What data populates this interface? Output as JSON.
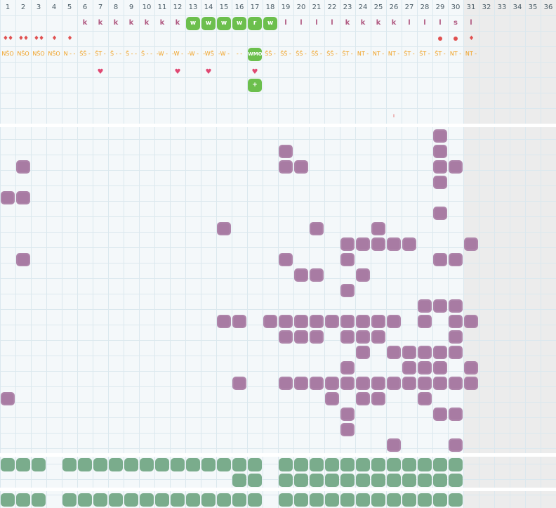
{
  "day_numbers": [
    "1",
    "2",
    "3",
    "4",
    "5",
    "6",
    "7",
    "8",
    "9",
    "10",
    "11",
    "12",
    "13",
    "14",
    "15",
    "16",
    "17",
    "18",
    "19",
    "20",
    "21",
    "22",
    "23",
    "24",
    "25",
    "26",
    "27",
    "28",
    "29",
    "30",
    "31",
    "32",
    "33",
    "34",
    "35",
    "36"
  ],
  "last_active_day": 30,
  "letter_row": [
    {
      "day": 6,
      "text": "k"
    },
    {
      "day": 7,
      "text": "k"
    },
    {
      "day": 8,
      "text": "k"
    },
    {
      "day": 9,
      "text": "k"
    },
    {
      "day": 10,
      "text": "k"
    },
    {
      "day": 11,
      "text": "k"
    },
    {
      "day": 12,
      "text": "k"
    },
    {
      "day": 13,
      "text": "w",
      "badge": true
    },
    {
      "day": 14,
      "text": "w",
      "badge": true
    },
    {
      "day": 15,
      "text": "w",
      "badge": true
    },
    {
      "day": 16,
      "text": "w",
      "badge": true
    },
    {
      "day": 17,
      "text": "r",
      "badge": true
    },
    {
      "day": 18,
      "text": "w",
      "badge": true
    },
    {
      "day": 19,
      "text": "l"
    },
    {
      "day": 20,
      "text": "l"
    },
    {
      "day": 21,
      "text": "l"
    },
    {
      "day": 22,
      "text": "l"
    },
    {
      "day": 23,
      "text": "k"
    },
    {
      "day": 24,
      "text": "k"
    },
    {
      "day": 25,
      "text": "k"
    },
    {
      "day": 26,
      "text": "k"
    },
    {
      "day": 27,
      "text": "l"
    },
    {
      "day": 28,
      "text": "l"
    },
    {
      "day": 29,
      "text": "l"
    },
    {
      "day": 30,
      "text": "s"
    },
    {
      "day": 31,
      "text": "l"
    }
  ],
  "marker_row": [
    {
      "day": 1,
      "text": "♦♦"
    },
    {
      "day": 2,
      "text": "♦♦"
    },
    {
      "day": 3,
      "text": "♦♦"
    },
    {
      "day": 4,
      "text": "♦"
    },
    {
      "day": 5,
      "text": "♦"
    },
    {
      "day": 29,
      "dot": true
    },
    {
      "day": 30,
      "dot": true
    },
    {
      "day": 31,
      "text": "♦"
    }
  ],
  "code_row": [
    {
      "day": 1,
      "text": "NŠO"
    },
    {
      "day": 2,
      "text": "NŠO"
    },
    {
      "day": 3,
      "text": "NŠO"
    },
    {
      "day": 4,
      "text": "NŠO"
    },
    {
      "day": 5,
      "text": "N - -"
    },
    {
      "day": 6,
      "text": "ŠŠ -"
    },
    {
      "day": 7,
      "text": "ŠT -"
    },
    {
      "day": 8,
      "text": "Š - -"
    },
    {
      "day": 9,
      "text": "Š - -"
    },
    {
      "day": 10,
      "text": "Š - -"
    },
    {
      "day": 11,
      "text": "-W -"
    },
    {
      "day": 12,
      "text": "-W -"
    },
    {
      "day": 13,
      "text": "-W -"
    },
    {
      "day": 14,
      "text": "-WŠ"
    },
    {
      "day": 15,
      "text": "-W -"
    },
    {
      "day": 16,
      "text": "- -"
    },
    {
      "day": 17,
      "text": "WMO",
      "badge": true
    },
    {
      "day": 18,
      "text": "ŠŠ -"
    },
    {
      "day": 19,
      "text": "ŠŠ -"
    },
    {
      "day": 20,
      "text": "ŠŠ -"
    },
    {
      "day": 21,
      "text": "ŠŠ -"
    },
    {
      "day": 22,
      "text": "ŠŠ -"
    },
    {
      "day": 23,
      "text": "ŠT -"
    },
    {
      "day": 24,
      "text": "NT -"
    },
    {
      "day": 25,
      "text": "NT -"
    },
    {
      "day": 26,
      "text": "NT -"
    },
    {
      "day": 27,
      "text": "ŠT -"
    },
    {
      "day": 28,
      "text": "ŠT -"
    },
    {
      "day": 29,
      "text": "ŠT -"
    },
    {
      "day": 30,
      "text": "NT -"
    },
    {
      "day": 31,
      "text": "NT -"
    }
  ],
  "heart_row": [
    {
      "day": 7
    },
    {
      "day": 12
    },
    {
      "day": 14
    },
    {
      "day": 17
    }
  ],
  "plus_badge": {
    "day": 17,
    "text": "+"
  },
  "tick_marker": {
    "day": 26,
    "text": "ı"
  },
  "colors": {
    "purple": "#a87ba3",
    "teal": "#7aac8c",
    "green": "#6cbf4d",
    "accent_orange": "#f0a020",
    "letter": "#b05a82"
  },
  "purple_rows": [
    [
      29
    ],
    [
      19,
      29
    ],
    [
      2,
      19,
      20,
      29,
      30
    ],
    [
      29
    ],
    [
      1,
      2
    ],
    [
      29
    ],
    [
      15,
      21,
      25
    ],
    [
      23,
      24,
      25,
      26,
      27,
      31
    ],
    [
      2,
      19,
      23,
      29,
      30
    ],
    [
      20,
      21,
      24
    ],
    [
      23
    ],
    [
      28,
      29,
      30
    ],
    [
      15,
      16,
      18,
      19,
      20,
      21,
      22,
      23,
      24,
      25,
      26,
      28,
      30,
      31
    ],
    [
      19,
      20,
      21,
      23,
      24,
      25,
      30
    ],
    [
      24,
      26,
      27,
      28,
      29,
      30
    ],
    [
      23,
      27,
      28,
      29,
      31
    ],
    [
      16,
      19,
      20,
      21,
      22,
      23,
      24,
      25,
      26,
      27,
      28,
      29,
      30,
      31
    ],
    [
      1,
      22,
      24,
      25,
      28
    ],
    [
      23,
      29,
      30
    ],
    [
      23
    ],
    [
      26,
      30
    ]
  ],
  "teal_rows": [
    [
      1,
      2,
      3,
      5,
      6,
      7,
      8,
      9,
      10,
      11,
      12,
      13,
      14,
      15,
      16,
      17,
      19,
      20,
      21,
      22,
      23,
      24,
      25,
      26,
      27,
      28,
      29,
      30
    ],
    [
      16,
      17,
      19,
      20,
      21,
      22,
      23,
      24,
      25,
      26,
      27,
      28,
      29,
      30
    ],
    [
      1,
      2,
      3,
      5,
      6,
      7,
      8,
      9,
      10,
      11,
      12,
      13,
      14,
      15,
      16,
      17,
      19,
      20,
      21,
      22,
      23,
      24,
      25,
      26,
      27,
      28,
      29,
      30
    ]
  ]
}
